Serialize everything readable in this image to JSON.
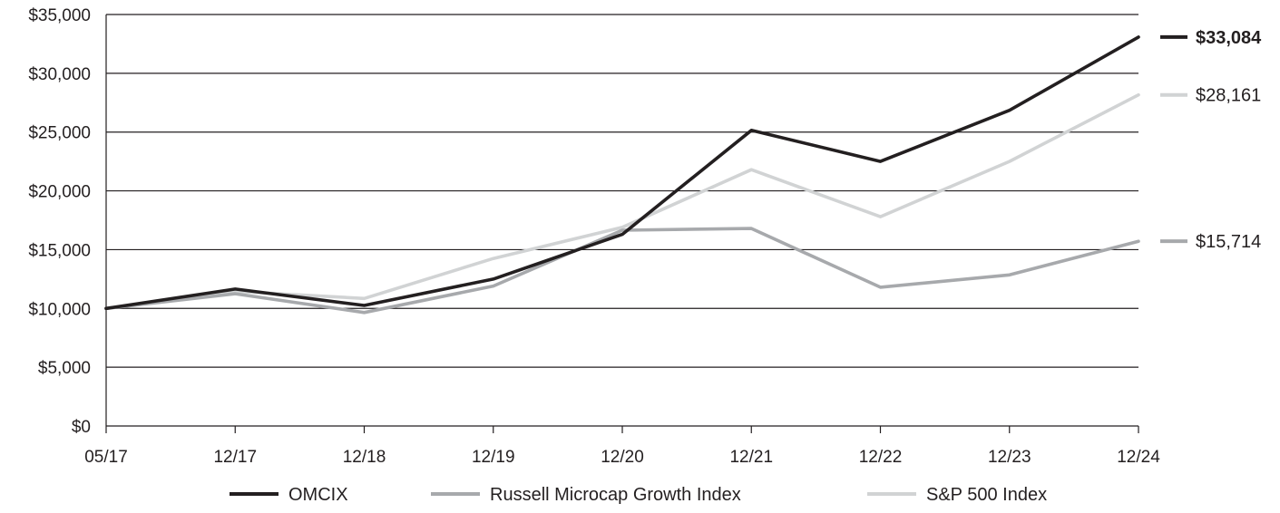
{
  "chart_data": {
    "type": "line",
    "title": "",
    "xlabel": "",
    "ylabel": "",
    "categories": [
      "05/17",
      "12/17",
      "12/18",
      "12/19",
      "12/20",
      "12/21",
      "12/22",
      "12/23",
      "12/24"
    ],
    "ylim": [
      0,
      35000
    ],
    "yticks": [
      0,
      5000,
      10000,
      15000,
      20000,
      25000,
      30000,
      35000
    ],
    "ytick_labels": [
      "$0",
      "$5,000",
      "$10,000",
      "$15,000",
      "$20,000",
      "$25,000",
      "$30,000",
      "$35,000"
    ],
    "grid": true,
    "legend_position": "bottom",
    "series": [
      {
        "name": "OMCIX",
        "color": "#231f20",
        "values": [
          10000,
          11650,
          10250,
          12500,
          16300,
          25150,
          22500,
          26850,
          33084
        ],
        "end_label": "$33,084",
        "end_label_bold": true
      },
      {
        "name": "Russell Microcap Growth Index",
        "color": "#a7a9ac",
        "values": [
          10000,
          11250,
          9650,
          11900,
          16650,
          16800,
          11800,
          12850,
          15714
        ],
        "end_label": "$15,714",
        "end_label_bold": false
      },
      {
        "name": "S&P 500 Index",
        "color": "#d1d3d4",
        "values": [
          10000,
          11450,
          10850,
          14250,
          16900,
          21800,
          17800,
          22500,
          28161
        ],
        "end_label": "$28,161",
        "end_label_bold": false
      }
    ]
  }
}
